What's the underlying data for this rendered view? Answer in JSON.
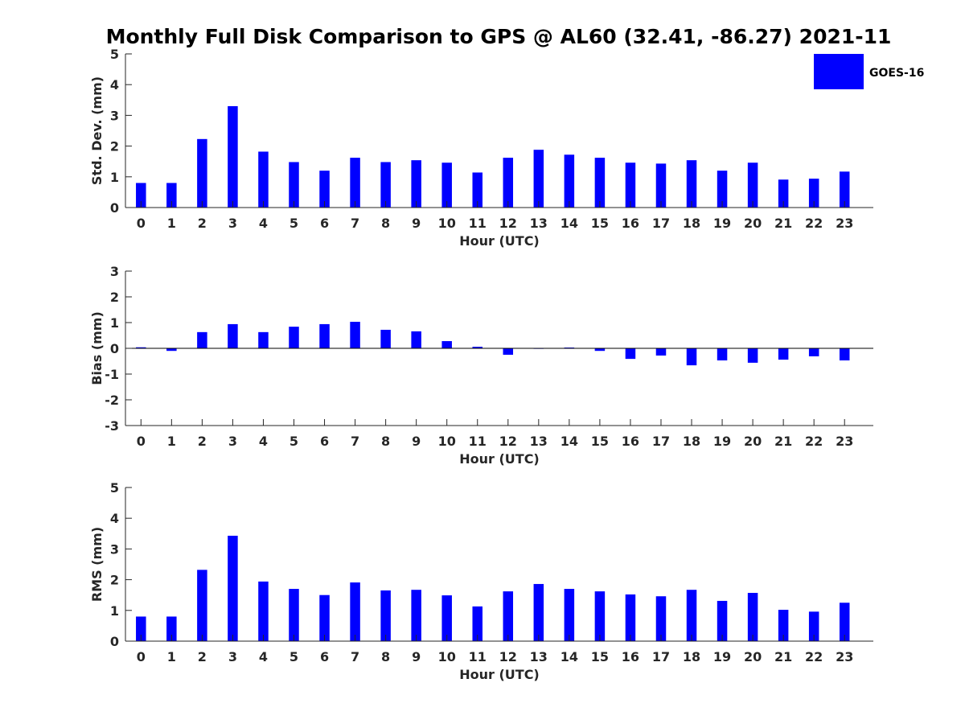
{
  "title": "Monthly Full Disk Comparison to GPS @ AL60 (32.41, -86.27) 2021-11",
  "legend": {
    "label": "GOES-16",
    "placement": "top-right"
  },
  "colors": {
    "bar": "#0000ff",
    "axis": "#262626"
  },
  "chart_data": [
    {
      "type": "bar",
      "series_name": "GOES-16",
      "xlabel": "Hour (UTC)",
      "ylabel": "Std. Dev. (mm)",
      "ylim": [
        0,
        5
      ],
      "yticks": [
        0,
        1,
        2,
        3,
        4,
        5
      ],
      "categories": [
        "0",
        "1",
        "2",
        "3",
        "4",
        "5",
        "6",
        "7",
        "8",
        "9",
        "10",
        "11",
        "12",
        "13",
        "14",
        "15",
        "16",
        "17",
        "18",
        "19",
        "20",
        "21",
        "22",
        "23"
      ],
      "values": [
        0.8,
        0.8,
        2.23,
        3.3,
        1.82,
        1.48,
        1.2,
        1.62,
        1.48,
        1.54,
        1.46,
        1.14,
        1.62,
        1.88,
        1.72,
        1.62,
        1.46,
        1.43,
        1.54,
        1.2,
        1.46,
        0.91,
        0.94,
        1.17
      ],
      "grid": false
    },
    {
      "type": "bar",
      "series_name": "GOES-16",
      "xlabel": "Hour (UTC)",
      "ylabel": "Bias (mm)",
      "ylim": [
        -3,
        3
      ],
      "yticks": [
        -3,
        -2,
        -1,
        0,
        1,
        2,
        3
      ],
      "zero_line": true,
      "categories": [
        "0",
        "1",
        "2",
        "3",
        "4",
        "5",
        "6",
        "7",
        "8",
        "9",
        "10",
        "11",
        "12",
        "13",
        "14",
        "15",
        "16",
        "17",
        "18",
        "19",
        "20",
        "21",
        "22",
        "23"
      ],
      "values": [
        0.04,
        -0.1,
        0.63,
        0.94,
        0.63,
        0.84,
        0.94,
        1.03,
        0.72,
        0.66,
        0.28,
        0.06,
        -0.25,
        -0.02,
        0.03,
        -0.1,
        -0.41,
        -0.28,
        -0.66,
        -0.47,
        -0.56,
        -0.44,
        -0.31,
        -0.47
      ],
      "grid": false
    },
    {
      "type": "bar",
      "series_name": "GOES-16",
      "xlabel": "Hour (UTC)",
      "ylabel": "RMS (mm)",
      "ylim": [
        0,
        5
      ],
      "yticks": [
        0,
        1,
        2,
        3,
        4,
        5
      ],
      "categories": [
        "0",
        "1",
        "2",
        "3",
        "4",
        "5",
        "6",
        "7",
        "8",
        "9",
        "10",
        "11",
        "12",
        "13",
        "14",
        "15",
        "16",
        "17",
        "18",
        "19",
        "20",
        "21",
        "22",
        "23"
      ],
      "values": [
        0.8,
        0.8,
        2.32,
        3.43,
        1.94,
        1.7,
        1.5,
        1.91,
        1.65,
        1.67,
        1.49,
        1.13,
        1.62,
        1.86,
        1.7,
        1.62,
        1.52,
        1.46,
        1.67,
        1.31,
        1.57,
        1.02,
        0.96,
        1.25
      ],
      "grid": false
    }
  ]
}
